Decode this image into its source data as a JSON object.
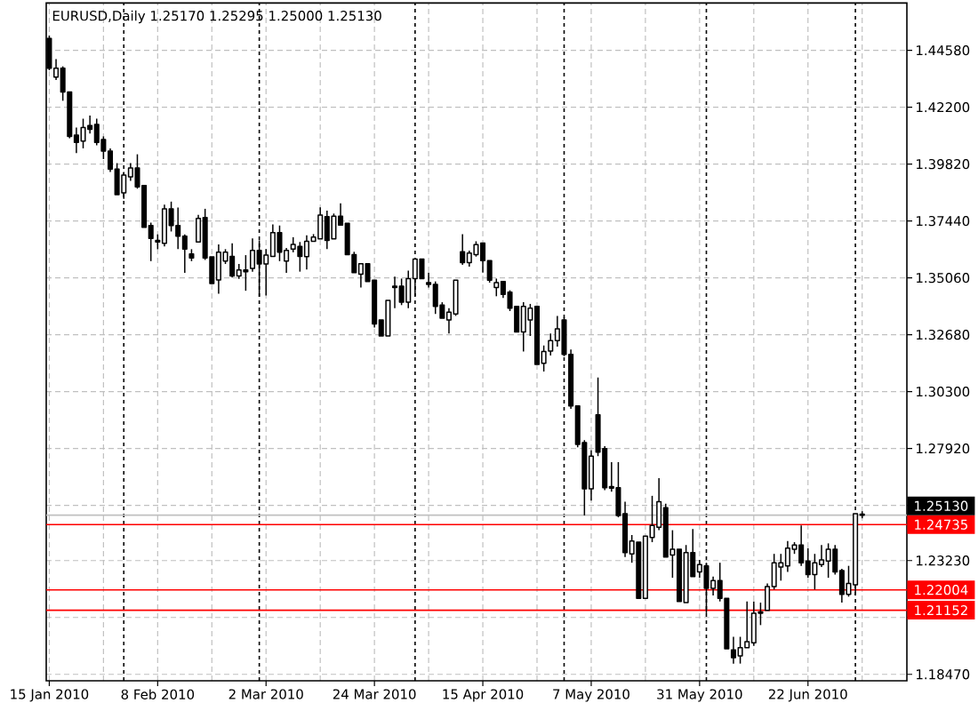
{
  "chart_data": {
    "type": "candlestick",
    "title": "EURUSD,Daily 1.25170 1.25295 1.25000 1.25130",
    "categories": [
      "15 Jan 2010",
      null,
      null,
      null,
      null,
      null,
      null,
      null,
      null,
      null,
      null,
      null,
      null,
      null,
      null,
      null,
      "8 Feb 2010",
      null,
      null,
      null,
      null,
      null,
      null,
      null,
      null,
      null,
      null,
      null,
      null,
      null,
      null,
      null,
      "2 Mar 2010",
      null,
      null,
      null,
      null,
      null,
      null,
      null,
      null,
      null,
      null,
      null,
      null,
      null,
      null,
      null,
      "24 Mar 2010",
      null,
      null,
      null,
      null,
      null,
      null,
      null,
      null,
      null,
      null,
      null,
      null,
      null,
      null,
      null,
      "15 Apr 2010",
      null,
      null,
      null,
      null,
      null,
      null,
      null,
      null,
      null,
      null,
      null,
      null,
      null,
      null,
      null,
      "7 May 2010",
      null,
      null,
      null,
      null,
      null,
      null,
      null,
      null,
      null,
      null,
      null,
      null,
      null,
      null,
      null,
      "31 May 2010",
      null,
      null,
      null,
      null,
      null,
      null,
      null,
      null,
      null,
      null,
      null,
      null,
      null,
      null,
      null,
      "22 Jun 2010",
      null,
      null,
      null,
      null,
      null,
      null,
      null,
      null
    ],
    "ohlc": [
      [
        1.4508,
        1.452,
        1.4375,
        1.4383
      ],
      [
        1.4346,
        1.4421,
        1.4334,
        1.4383
      ],
      [
        1.4383,
        1.4391,
        1.4247,
        1.4284
      ],
      [
        1.4284,
        1.4284,
        1.409,
        1.4098
      ],
      [
        1.4103,
        1.4135,
        1.4028,
        1.4073
      ],
      [
        1.4078,
        1.4172,
        1.4048,
        1.4135
      ],
      [
        1.4143,
        1.4185,
        1.411,
        1.4128
      ],
      [
        1.4148,
        1.4172,
        1.4061,
        1.4073
      ],
      [
        1.4085,
        1.4098,
        1.4003,
        1.4036
      ],
      [
        1.4036,
        1.4048,
        1.3949,
        1.3961
      ],
      [
        1.3961,
        1.3986,
        1.3854,
        1.3854
      ],
      [
        1.3862,
        1.3949,
        1.3837,
        1.3936
      ],
      [
        1.3929,
        1.3986,
        1.3912,
        1.3966
      ],
      [
        1.3966,
        1.4023,
        1.3879,
        1.3887
      ],
      [
        1.3892,
        1.3892,
        1.3718,
        1.3718
      ],
      [
        1.3725,
        1.3737,
        1.3576,
        1.3671
      ],
      [
        1.3663,
        1.3688,
        1.3626,
        1.3656
      ],
      [
        1.3651,
        1.3812,
        1.3638,
        1.3795
      ],
      [
        1.3795,
        1.3825,
        1.37,
        1.3725
      ],
      [
        1.3725,
        1.38,
        1.3626,
        1.368
      ],
      [
        1.368,
        1.3688,
        1.3527,
        1.3626
      ],
      [
        1.3606,
        1.3626,
        1.3576,
        1.3589
      ],
      [
        1.3656,
        1.377,
        1.3656,
        1.3755
      ],
      [
        1.3758,
        1.3795,
        1.3581,
        1.3589
      ],
      [
        1.3594,
        1.3594,
        1.3482,
        1.3482
      ],
      [
        1.3497,
        1.3646,
        1.344,
        1.3613
      ],
      [
        1.3576,
        1.3626,
        1.3564,
        1.3613
      ],
      [
        1.3596,
        1.3651,
        1.3507,
        1.3514
      ],
      [
        1.3514,
        1.3564,
        1.3502,
        1.3539
      ],
      [
        1.3539,
        1.3601,
        1.3452,
        1.3532
      ],
      [
        1.3546,
        1.3671,
        1.3532,
        1.3621
      ],
      [
        1.3621,
        1.3663,
        1.3427,
        1.3564
      ],
      [
        1.3564,
        1.3626,
        1.3432,
        1.3601
      ],
      [
        1.3596,
        1.373,
        1.3596,
        1.3695
      ],
      [
        1.3695,
        1.3725,
        1.3576,
        1.3613
      ],
      [
        1.3576,
        1.3631,
        1.3527,
        1.3621
      ],
      [
        1.3626,
        1.3676,
        1.3613,
        1.3646
      ],
      [
        1.3638,
        1.3656,
        1.3532,
        1.3596
      ],
      [
        1.3595,
        1.3684,
        1.3541,
        1.3659
      ],
      [
        1.3659,
        1.3689,
        1.3659,
        1.3677
      ],
      [
        1.3669,
        1.3801,
        1.3669,
        1.3769
      ],
      [
        1.3762,
        1.3787,
        1.3626,
        1.3663
      ],
      [
        1.3669,
        1.3775,
        1.3669,
        1.3764
      ],
      [
        1.3764,
        1.3818,
        1.3727,
        1.3727
      ],
      [
        1.3734,
        1.3734,
        1.3603,
        1.3603
      ],
      [
        1.3603,
        1.3615,
        1.3528,
        1.3528
      ],
      [
        1.3521,
        1.3565,
        1.3466,
        1.3565
      ],
      [
        1.3565,
        1.3565,
        1.3491,
        1.3491
      ],
      [
        1.3496,
        1.3496,
        1.3298,
        1.3313
      ],
      [
        1.333,
        1.333,
        1.3263,
        1.3263
      ],
      [
        1.3263,
        1.3412,
        1.3263,
        1.3412
      ],
      [
        1.3471,
        1.3511,
        1.3379,
        1.3466
      ],
      [
        1.3471,
        1.3503,
        1.3392,
        1.3404
      ],
      [
        1.3404,
        1.3536,
        1.3379,
        1.3503
      ],
      [
        1.3503,
        1.3585,
        1.3429,
        1.3585
      ],
      [
        1.3585,
        1.3585,
        1.3503,
        1.3503
      ],
      [
        1.3486,
        1.3528,
        1.3466,
        1.3479
      ],
      [
        1.3479,
        1.3491,
        1.3355,
        1.3387
      ],
      [
        1.3392,
        1.3404,
        1.3337,
        1.3337
      ],
      [
        1.333,
        1.3379,
        1.3273,
        1.3362
      ],
      [
        1.3355,
        1.3496,
        1.3347,
        1.3496
      ],
      [
        1.3615,
        1.3689,
        1.356,
        1.357
      ],
      [
        1.357,
        1.362,
        1.3553,
        1.361
      ],
      [
        1.3603,
        1.3659,
        1.3595,
        1.3645
      ],
      [
        1.3652,
        1.3652,
        1.3528,
        1.3578
      ],
      [
        1.3578,
        1.3578,
        1.3486,
        1.3496
      ],
      [
        1.3466,
        1.3503,
        1.3429,
        1.3486
      ],
      [
        1.3491,
        1.3491,
        1.3422,
        1.3437
      ],
      [
        1.3446,
        1.3454,
        1.3367,
        1.3379
      ],
      [
        1.3387,
        1.3387,
        1.328,
        1.328
      ],
      [
        1.328,
        1.3404,
        1.3198,
        1.3387
      ],
      [
        1.333,
        1.3397,
        1.3263,
        1.3379
      ],
      [
        1.3387,
        1.3387,
        1.3144,
        1.3144
      ],
      [
        1.3149,
        1.3223,
        1.3114,
        1.3198
      ],
      [
        1.32,
        1.3273,
        1.3181,
        1.3243
      ],
      [
        1.3243,
        1.3347,
        1.3218,
        1.3293
      ],
      [
        1.333,
        1.334,
        1.3178,
        1.3186
      ],
      [
        1.3186,
        1.3206,
        1.2958,
        1.297
      ],
      [
        1.297,
        1.297,
        1.2797,
        1.2809
      ],
      [
        1.2817,
        1.2827,
        1.2512,
        1.2623
      ],
      [
        1.2623,
        1.2785,
        1.2574,
        1.276
      ],
      [
        1.2933,
        1.3089,
        1.276,
        1.2777
      ],
      [
        1.2792,
        1.2802,
        1.2618,
        1.2628
      ],
      [
        1.2633,
        1.2735,
        1.2611,
        1.2626
      ],
      [
        1.2628,
        1.2735,
        1.2504,
        1.2512
      ],
      [
        1.2519,
        1.2569,
        1.2338,
        1.2356
      ],
      [
        1.2351,
        1.243,
        1.2314,
        1.2405
      ],
      [
        1.24,
        1.24,
        1.2165,
        1.2165
      ],
      [
        1.2165,
        1.2425,
        1.2165,
        1.2425
      ],
      [
        1.242,
        1.2594,
        1.24,
        1.247
      ],
      [
        1.2462,
        1.2668,
        1.245,
        1.2569
      ],
      [
        1.2544,
        1.2561,
        1.2338,
        1.2338
      ],
      [
        1.2346,
        1.245,
        1.2251,
        1.237
      ],
      [
        1.237,
        1.237,
        1.2152,
        1.2152
      ],
      [
        1.2147,
        1.2388,
        1.2147,
        1.2356
      ],
      [
        1.2356,
        1.2455,
        1.2256,
        1.2256
      ],
      [
        1.2276,
        1.2326,
        1.2251,
        1.2306
      ],
      [
        1.2301,
        1.2314,
        1.2103,
        1.2207
      ],
      [
        1.2207,
        1.2256,
        1.2177,
        1.2239
      ],
      [
        1.2239,
        1.2314,
        1.2152,
        1.2165
      ],
      [
        1.2165,
        1.2165,
        1.1954,
        1.1954
      ],
      [
        1.1949,
        1.2004,
        1.1892,
        1.1917
      ],
      [
        1.1924,
        1.2004,
        1.1892,
        1.1959
      ],
      [
        1.1959,
        1.2152,
        1.1959,
        1.1984
      ],
      [
        1.1979,
        1.2152,
        1.1966,
        1.2103
      ],
      [
        1.2108,
        1.2147,
        1.2053,
        1.2103
      ],
      [
        1.2115,
        1.2227,
        1.2115,
        1.2214
      ],
      [
        1.2214,
        1.2351,
        1.2202,
        1.2314
      ],
      [
        1.2296,
        1.2351,
        1.2239,
        1.2314
      ],
      [
        1.2301,
        1.2405,
        1.2276,
        1.2375
      ],
      [
        1.237,
        1.24,
        1.2351,
        1.2388
      ],
      [
        1.2388,
        1.247,
        1.2301,
        1.2314
      ],
      [
        1.2321,
        1.2375,
        1.2251,
        1.2264
      ],
      [
        1.2264,
        1.2351,
        1.2202,
        1.2314
      ],
      [
        1.2306,
        1.2388,
        1.2296,
        1.2326
      ],
      [
        1.2321,
        1.2395,
        1.2251,
        1.237
      ],
      [
        1.237,
        1.2388,
        1.2264,
        1.2276
      ],
      [
        1.2281,
        1.2289,
        1.2147,
        1.2182
      ],
      [
        1.2182,
        1.2301,
        1.2172,
        1.2227
      ],
      [
        1.2222,
        1.2519,
        1.2177,
        1.2519
      ],
      [
        1.2517,
        1.25295,
        1.25,
        1.2513
      ]
    ],
    "color": "#000000",
    "ylim": [
      1.182,
      1.4656
    ],
    "yticks": [
      {
        "value": 1.4458,
        "label": "1.44580"
      },
      {
        "value": 1.422,
        "label": "1.42200"
      },
      {
        "value": 1.3982,
        "label": "1.39820"
      },
      {
        "value": 1.3744,
        "label": "1.37440"
      },
      {
        "value": 1.3506,
        "label": "1.35060"
      },
      {
        "value": 1.3268,
        "label": "1.32680"
      },
      {
        "value": 1.303,
        "label": "1.30300"
      },
      {
        "value": 1.2792,
        "label": "1.27920"
      },
      {
        "value": 1.2554,
        "label": null
      },
      {
        "value": 1.2323,
        "label": "1.23230"
      },
      {
        "value": 1.2085,
        "label": null
      },
      {
        "value": 1.1847,
        "label": "1.18470"
      }
    ],
    "grid": true,
    "ref_lines": [
      {
        "axis": "y",
        "value": 1.2513,
        "label": "1.25130",
        "color": "#c0c0c0"
      },
      {
        "axis": "y",
        "value": 1.24735,
        "label": "1.24735",
        "color": "#ff0000"
      },
      {
        "axis": "y",
        "value": 1.22004,
        "label": "1.22004",
        "color": "#ff0000"
      },
      {
        "axis": "y",
        "value": 1.21152,
        "label": "1.21152",
        "color": "#ff0000"
      }
    ]
  }
}
